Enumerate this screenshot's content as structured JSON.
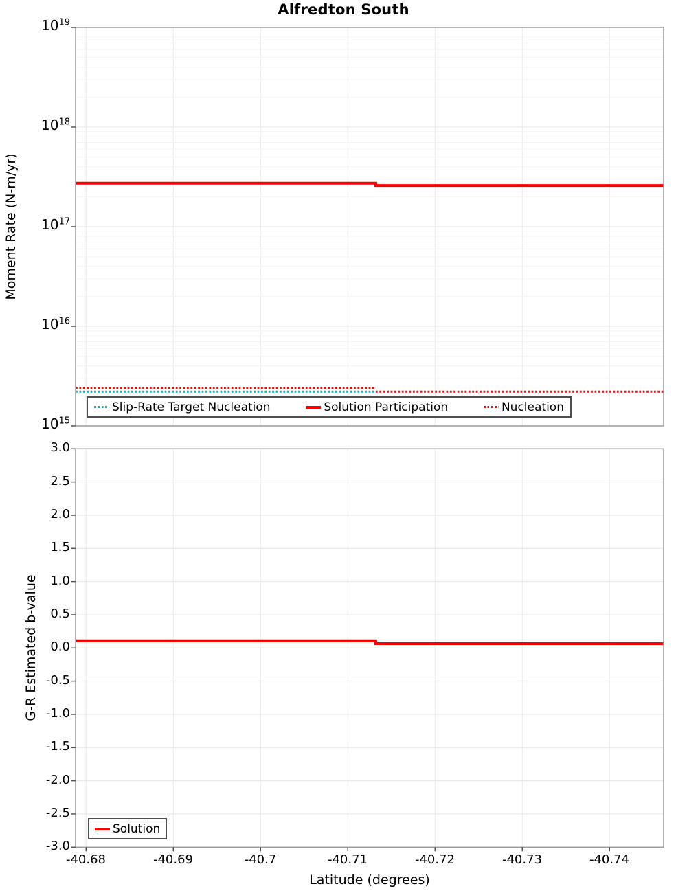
{
  "title": "Alfredton South",
  "colors": {
    "red": "#ff0000",
    "cyan": "#00b5bd",
    "grid_minor": "#f4f4f4",
    "grid_major": "#e4e4e4",
    "grid_vertical": "#e9e9e9",
    "plot_border": "#9b9b9b",
    "tick_mark": "#555555",
    "legend_border": "#4f4f4f"
  },
  "chart_data": [
    {
      "type": "line",
      "title": "Alfredton South",
      "ylabel": "Moment Rate (N-m/yr)",
      "yscale": "log",
      "ylim": [
        1000000000000000.0,
        1e+19
      ],
      "y_tick_exponents": [
        19,
        18,
        17,
        16,
        15
      ],
      "xlim": [
        -40.6788,
        -40.7462
      ],
      "x_ticks": [
        -40.68,
        -40.69,
        -40.7,
        -40.71,
        -40.72,
        -40.73,
        -40.74
      ],
      "grid": true,
      "legend_position": "inside-bottom-left",
      "series": [
        {
          "name": "Slip-Rate Target Nucleation",
          "color": "#00b5bd",
          "style": "dotted",
          "width": 3,
          "segments": [
            [
              {
                "x": -40.6788,
                "y": 2200000000000000.0
              },
              {
                "x": -40.7132,
                "y": 2200000000000000.0
              }
            ]
          ]
        },
        {
          "name": "Solution Participation",
          "color": "#ff0000",
          "style": "solid",
          "width": 4,
          "segments": [
            [
              {
                "x": -40.6788,
                "y": 2.73e+17
              },
              {
                "x": -40.7132,
                "y": 2.73e+17
              },
              {
                "x": -40.7132,
                "y": 2.59e+17
              },
              {
                "x": -40.7462,
                "y": 2.59e+17
              }
            ]
          ]
        },
        {
          "name": "Nucleation",
          "color": "#ff0000",
          "style": "dotted",
          "width": 3,
          "segments": [
            [
              {
                "x": -40.6788,
                "y": 2400000000000000.0
              },
              {
                "x": -40.7132,
                "y": 2400000000000000.0
              }
            ],
            [
              {
                "x": -40.7132,
                "y": 2200000000000000.0
              },
              {
                "x": -40.7462,
                "y": 2200000000000000.0
              }
            ]
          ]
        }
      ]
    },
    {
      "type": "line",
      "ylabel": "G-R Estimated b-value",
      "xlabel": "Latitude (degrees)",
      "yscale": "linear",
      "ylim": [
        -3.0,
        3.0
      ],
      "y_ticks": [
        3.0,
        2.5,
        2.0,
        1.5,
        1.0,
        0.5,
        0.0,
        -0.5,
        -1.0,
        -1.5,
        -2.0,
        -2.5,
        -3.0
      ],
      "y_tick_labels": [
        "3.0",
        "2.5",
        "2.0",
        "1.5",
        "1.0",
        "0.5",
        "0.0",
        "-0.5",
        "-1.0",
        "-1.5",
        "-2.0",
        "-2.5",
        "-3.0"
      ],
      "xlim": [
        -40.6788,
        -40.7462
      ],
      "x_ticks": [
        -40.68,
        -40.69,
        -40.7,
        -40.71,
        -40.72,
        -40.73,
        -40.74
      ],
      "x_tick_labels": [
        "-40.68",
        "-40.69",
        "-40.7",
        "-40.71",
        "-40.72",
        "-40.73",
        "-40.74"
      ],
      "grid": true,
      "legend_position": "inside-bottom-left",
      "series": [
        {
          "name": "Solution",
          "color": "#ff0000",
          "style": "solid",
          "width": 4,
          "segments": [
            [
              {
                "x": -40.6788,
                "y": 0.11
              },
              {
                "x": -40.7132,
                "y": 0.11
              },
              {
                "x": -40.7132,
                "y": 0.065
              },
              {
                "x": -40.7462,
                "y": 0.065
              }
            ]
          ]
        }
      ]
    }
  ]
}
